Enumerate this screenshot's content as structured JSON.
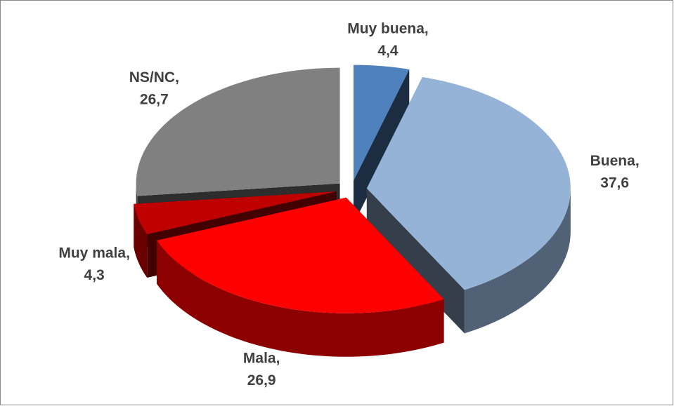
{
  "chart_data": {
    "type": "pie3d",
    "categories": [
      "Muy buena",
      "Buena",
      "Mala",
      "Muy mala",
      "NS/NC"
    ],
    "values": [
      4.4,
      37.6,
      26.9,
      4.3,
      26.7
    ],
    "value_labels": [
      "4,4",
      "37,6",
      "26,9",
      "4,3",
      "26,7"
    ],
    "label_separator": ",",
    "colors": [
      "#4f81bd",
      "#95b3d7",
      "#ff0000",
      "#c00000",
      "#808080"
    ],
    "start": "top",
    "direction": "clockwise",
    "exploded": true
  }
}
